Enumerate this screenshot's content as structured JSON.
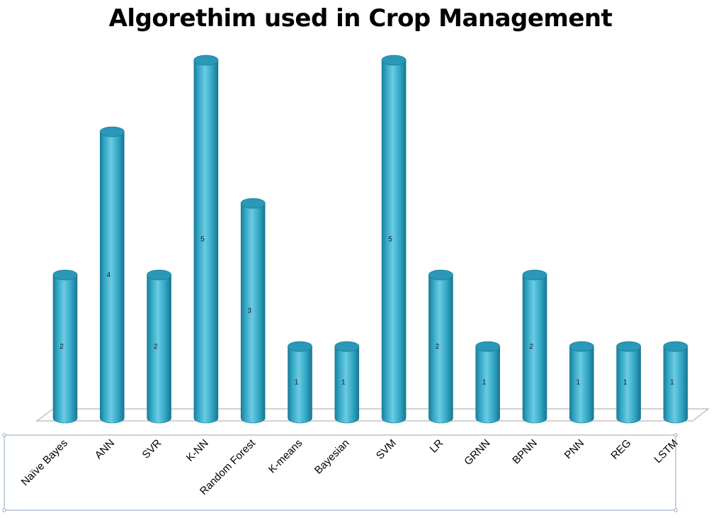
{
  "chart_data": {
    "type": "bar",
    "title": "Algorethim used in Crop Management",
    "categories": [
      "Naïve Bayes",
      "ANN",
      "SVR",
      "K-NN",
      "Random Forest",
      "K-means",
      "Bayesian",
      "SVM",
      "LR",
      "GRNN",
      "BPNN",
      "PNN",
      "REG",
      "LSTM"
    ],
    "values": [
      2,
      4,
      2,
      5,
      3,
      1,
      1,
      5,
      2,
      1,
      2,
      1,
      1,
      1
    ],
    "xlabel": "",
    "ylabel": "",
    "ylim": [
      0,
      5
    ],
    "grid": false,
    "legend": "none",
    "bar_shape": "3d-cylinder",
    "data_labels": "inside-center",
    "colors": {
      "bar": "#31A6C4",
      "bar_dark": "#1C7D98",
      "bar_light": "#7ED3E8",
      "floor": "#FFFFFF",
      "floor_edge": "#A6A6A6",
      "axis_box": "#8EA9C1"
    }
  }
}
